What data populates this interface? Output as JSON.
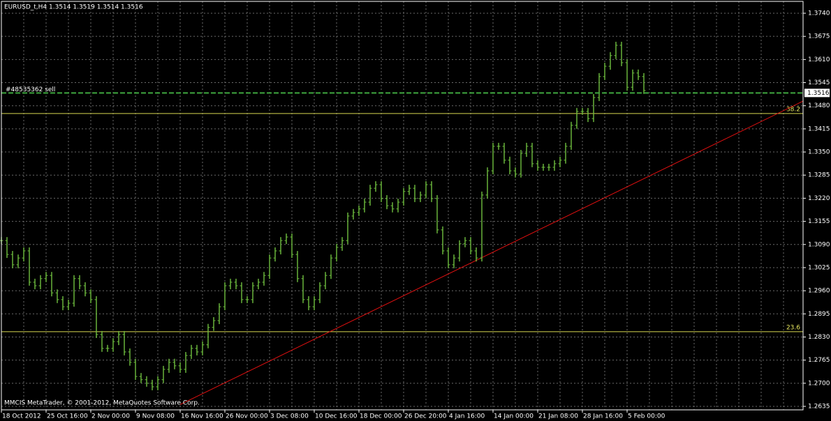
{
  "chart_data": {
    "type": "price-bars",
    "header": "EURUSD_t,H4  1.3514 1.3519 1.3514 1.3516",
    "footer": "MMCIS MetaTrader, © 2001-2012, MetaQuotes Software Corp.",
    "color": "#6fbf3f",
    "grid": true,
    "categories": [
      "18 Oct 2012",
      null,
      null,
      null,
      null,
      null,
      null,
      null,
      "25 Oct 16:00",
      null,
      null,
      null,
      null,
      null,
      null,
      null,
      "2 Nov 00:00",
      null,
      null,
      null,
      null,
      null,
      null,
      null,
      "9 Nov 08:00",
      null,
      null,
      null,
      null,
      null,
      null,
      null,
      "16 Nov 16:00",
      null,
      null,
      null,
      null,
      null,
      null,
      null,
      "26 Nov 00:00",
      null,
      null,
      null,
      null,
      null,
      null,
      null,
      "3 Dec 08:00",
      null,
      null,
      null,
      null,
      null,
      null,
      null,
      "10 Dec 16:00",
      null,
      null,
      null,
      null,
      null,
      null,
      null,
      "18 Dec 00:00",
      null,
      null,
      null,
      null,
      null,
      null,
      null,
      "26 Dec 20:00",
      null,
      null,
      null,
      null,
      null,
      null,
      null,
      "4 Jan 16:00",
      null,
      null,
      null,
      null,
      null,
      null,
      null,
      "14 Jan 00:00",
      null,
      null,
      null,
      null,
      null,
      null,
      null,
      "21 Jan 08:00",
      null,
      null,
      null,
      null,
      null,
      null,
      null,
      "28 Jan 16:00",
      null,
      null,
      null,
      null,
      null,
      null,
      null,
      "5 Feb 00:00",
      null,
      null,
      null
    ],
    "values": [
      1.3101,
      1.3062,
      1.3033,
      1.3052,
      1.3072,
      1.2984,
      1.2974,
      1.2994,
      1.3003,
      1.2954,
      1.2935,
      1.2915,
      1.2925,
      1.2994,
      1.2974,
      1.2954,
      1.2935,
      1.2837,
      1.2798,
      1.2798,
      1.2817,
      1.2837,
      1.2788,
      1.2759,
      1.2719,
      1.271,
      1.27,
      1.269,
      1.271,
      1.2739,
      1.2759,
      1.2749,
      1.2739,
      1.2778,
      1.2798,
      1.2788,
      1.2808,
      1.2857,
      1.2876,
      1.2915,
      1.2974,
      1.2984,
      1.2974,
      1.2935,
      1.2935,
      1.2974,
      1.2984,
      1.3003,
      1.3052,
      1.3072,
      1.3101,
      1.3111,
      1.3062,
      1.2994,
      1.2935,
      1.2915,
      1.2935,
      1.2974,
      1.3003,
      1.3052,
      1.3082,
      1.3101,
      1.317,
      1.318,
      1.319,
      1.3209,
      1.3248,
      1.3258,
      1.3219,
      1.3199,
      1.319,
      1.3209,
      1.3239,
      1.3248,
      1.3219,
      1.3229,
      1.3258,
      1.3219,
      1.3131,
      1.3072,
      1.3033,
      1.3052,
      1.3092,
      1.3101,
      1.3072,
      1.3052,
      1.3229,
      1.3297,
      1.3366,
      1.3366,
      1.3327,
      1.3297,
      1.3288,
      1.3346,
      1.3366,
      1.3317,
      1.3307,
      1.3307,
      1.3307,
      1.3317,
      1.3327,
      1.3366,
      1.3425,
      1.3464,
      1.3464,
      1.3444,
      1.3503,
      1.3562,
      1.3591,
      1.3621,
      1.365,
      1.3601,
      1.3532,
      1.3572,
      1.3562,
      1.3523
    ],
    "ylim": [
      1.2635,
      1.374
    ],
    "yticks": [
      {
        "value": 1.374,
        "label": "1.3740"
      },
      1.3675,
      {
        "value": 1.361,
        "label": "1.3610"
      },
      1.3545,
      {
        "value": 1.348,
        "label": "1.3480"
      },
      1.3415,
      {
        "value": 1.335,
        "label": "1.3350"
      },
      1.3285,
      {
        "value": 1.322,
        "label": "1.3220"
      },
      1.3155,
      {
        "value": 1.309,
        "label": "1.3090"
      },
      1.3025,
      {
        "value": 1.296,
        "label": "1.2960"
      },
      1.2895,
      {
        "value": 1.283,
        "label": "1.2830"
      },
      1.2765,
      {
        "value": 1.27,
        "label": "1.2700"
      },
      1.2635
    ],
    "order": {
      "label": "#48535362 sell",
      "price": 1.3516
    },
    "fib_levels": [
      {
        "level": 38.2,
        "price": 1.3458
      },
      {
        "level": 23.6,
        "price": 1.2845
      }
    ],
    "trendline": {
      "start": [
        32,
        1.264
      ],
      "end": [
        143.5,
        1.3493
      ]
    }
  }
}
